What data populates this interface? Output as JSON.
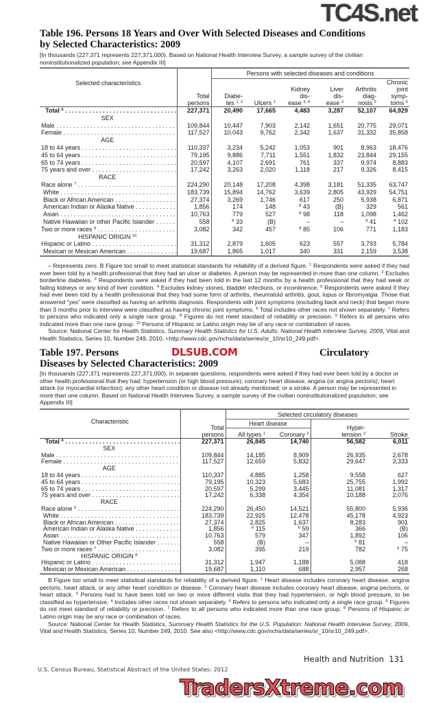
{
  "watermarks": {
    "top": "TC4S.net",
    "middle": "DLSUB.COM",
    "bottom": "TradersXtreme.com"
  },
  "table196": {
    "title_line1": "Table 196. Persons 18 Years and Over With Selected Diseases and Conditions",
    "title_line2": "by Selected Characteristics: 2009",
    "headnote": "[In thousands (227,371 represents 227,371,000). Based on National Health Interview Survey, a sample survey of the civilian noninstitutionalized population; see Appendix III]",
    "group_header": "Persons with selected diseases and conditions",
    "stub_header": "Selected characteristics",
    "columns": [
      {
        "label": "Total persons",
        "sup": ""
      },
      {
        "label": "Diabe- tes",
        "sup": "1, 2"
      },
      {
        "label": "Ulcers",
        "sup": "1"
      },
      {
        "label": "Kidney dis- ease",
        "sup": "3, 4"
      },
      {
        "label": "Liver dis- ease",
        "sup": "3"
      },
      {
        "label": "Arthritis diag- nosis",
        "sup": "5"
      },
      {
        "label": "Chronic joint symp- toms",
        "sup": "5"
      }
    ],
    "rows": [
      {
        "type": "total",
        "label": "Total",
        "sup": "6",
        "values": [
          "227,371",
          "20,490",
          "17,665",
          "4,483",
          "3,287",
          "52,107",
          "64,929"
        ]
      },
      {
        "type": "section",
        "label": "SEX"
      },
      {
        "label": "Male",
        "values": [
          "109,844",
          "10,447",
          "7,903",
          "2,142",
          "1,651",
          "20,775",
          "29,071"
        ]
      },
      {
        "label": "Female",
        "values": [
          "117,527",
          "10,043",
          "9,762",
          "2,342",
          "1,637",
          "31,332",
          "35,858"
        ]
      },
      {
        "type": "section",
        "label": "AGE"
      },
      {
        "label": "18 to 44 years",
        "values": [
          "110,337",
          "3,234",
          "5,242",
          "1,053",
          "901",
          "8,963",
          "18,476"
        ]
      },
      {
        "label": "45 to 64 years",
        "values": [
          "79,195",
          "9,886",
          "7,711",
          "1,551",
          "1,832",
          "23,844",
          "29,155"
        ]
      },
      {
        "label": "65 to 74 years",
        "values": [
          "20,597",
          "4,107",
          "2,691",
          "761",
          "337",
          "9,974",
          "8,883"
        ]
      },
      {
        "label": "75 years and over",
        "values": [
          "17,242",
          "3,263",
          "2,020",
          "1,118",
          "217",
          "9,326",
          "8,415"
        ]
      },
      {
        "type": "section",
        "label": "RACE"
      },
      {
        "label": "Race alone",
        "sup": "7",
        "values": [
          "224,290",
          "20,148",
          "17,208",
          "4,398",
          "3,181",
          "51,335",
          "63,747"
        ]
      },
      {
        "label": "White",
        "indent": 1,
        "values": [
          "183,739",
          "15,894",
          "14,762",
          "3,639",
          "2,805",
          "43,929",
          "54,751"
        ]
      },
      {
        "label": "Black or African American",
        "indent": 1,
        "values": [
          "27,374",
          "3,269",
          "1,746",
          "617",
          "250",
          "5,938",
          "6,871"
        ]
      },
      {
        "label": "American Indian or Alaska Native",
        "indent": 1,
        "values": [
          "1,856",
          "174",
          "148",
          [
            "8",
            "43"
          ],
          "(B)",
          "329",
          "561"
        ]
      },
      {
        "label": "Asian",
        "indent": 1,
        "values": [
          "10,763",
          "779",
          "527",
          [
            "8",
            "98"
          ],
          "118",
          "1,098",
          "1,462"
        ]
      },
      {
        "label": "Native Hawaiian or other Pacific Islander",
        "indent": 1,
        "values": [
          "558",
          [
            "8",
            "33"
          ],
          "(B)",
          "–",
          "–",
          [
            "8",
            "41"
          ],
          [
            "8",
            "102"
          ]
        ]
      },
      {
        "label": "Two or more races",
        "sup": "9",
        "values": [
          "3,082",
          "342",
          "457",
          [
            "8",
            "85"
          ],
          "106",
          "771",
          "1,183"
        ]
      },
      {
        "type": "section",
        "label": "HISPANIC ORIGIN",
        "sup": "10"
      },
      {
        "label": "Hispanic or Latino",
        "values": [
          "31,312",
          "2,879",
          "1,605",
          "623",
          "557",
          "3,793",
          "5,784"
        ]
      },
      {
        "label": "Mexican or Mexican American",
        "indent": 1,
        "values": [
          "19,687",
          "1,865",
          "1,017",
          "340",
          "331",
          "2,159",
          "3,538"
        ]
      }
    ],
    "notes": [
      [
        "– Represents zero. B Figure too small to meet statistical standards for reliability of a derived figure. ",
        {
          "sup": "1"
        },
        " Respondents were asked if they had ever been told by a health professional that they had an ulcer or diabetes. A person may be represented in more than one column. ",
        {
          "sup": "2"
        },
        " Excludes borderline diabetes. ",
        {
          "sup": "3"
        },
        " Respondents were asked if they had been told in the last 12 months by a health professional that they had weak or failing kidneys or any kind of liver condition. ",
        {
          "sup": "4"
        },
        " Excludes kidney stones, bladder infections, or incontinence. ",
        {
          "sup": "5"
        },
        " Respondents were asked if they had ever been told by a health professional that they had some form of arthritis, rheumatoid arthritis, gout, lupus or fibromyalgia. Those that answered “yes” were classified as having an arthritis diagnosis. Respondents with joint symptoms (excluding back and neck) that began more than 3 months prior to interview were classified as having chronic joint symptoms. ",
        {
          "sup": "6"
        },
        " Total includes other races not shown separately. ",
        {
          "sup": "7"
        },
        " Refers to persons who indicated only a single race group. ",
        {
          "sup": "8"
        },
        " Figures do not meet standard of reliability or precision. ",
        {
          "sup": "9"
        },
        " Refers to all persons who indicated more than one race group. ",
        {
          "sup": "10"
        },
        " Persons of Hispanic or Latino origin may be of any race or combination of races."
      ],
      [
        "Source: National Center for Health Statistics, ",
        {
          "i": "Summary Health Statistics for U.S. Adults: National Health Interview Survey, 2009"
        },
        ", Vital and Health Statistics, Series 10, Number 249, 2010, <http://www.cdc.gov/nchs/data/series/sr_10/sr10_249.pdf>."
      ]
    ]
  },
  "table197": {
    "title_line1_left": "Table 197. Persons",
    "title_line1_right": "Circulatory",
    "title_line2": "Diseases by Selected Characteristics: 2009",
    "headnote": "[In thousands (227,371 represents 227,371,000). In separate questions, respondents were asked if they had ever been told by a doctor or other health professional that they had: hypertension (or high blood pressure); coronary heart disease, angina (or angina pectoris); heart attack (or myocardial infarction); any other heart condition or disease not already mentioned; or a stroke. A person may be represented in more than one column. Based on National Health Interview Survey, a sample survey of the civilian noninstitutionalized population; see Appendix III]",
    "group_header": "Selected circulatory diseases",
    "subgroup_header": "Heart disease",
    "stub_header": "Characteristic",
    "columns": [
      {
        "label": "Total persons",
        "sup": ""
      },
      {
        "label": "All types",
        "sup": "1"
      },
      {
        "label": "Coronary",
        "sup": "2"
      },
      {
        "label": "Hyper- tension",
        "sup": "3"
      },
      {
        "label": "Stroke",
        "sup": ""
      }
    ],
    "rows": [
      {
        "type": "total",
        "label": "Total",
        "sup": "4",
        "values": [
          "227,371",
          "26,845",
          "14,740",
          "56,582",
          "6,011"
        ]
      },
      {
        "type": "section",
        "label": "SEX"
      },
      {
        "label": "Male",
        "values": [
          "109,844",
          "14,185",
          "8,909",
          "26,935",
          "2,678"
        ]
      },
      {
        "label": "Female",
        "values": [
          "117,527",
          "12,659",
          "5,832",
          "29,647",
          "3,333"
        ]
      },
      {
        "type": "section",
        "label": "AGE"
      },
      {
        "label": "18 to 44 years",
        "values": [
          "110,337",
          "4,885",
          "1,258",
          "9,558",
          "627"
        ]
      },
      {
        "label": "45 to 64 years",
        "values": [
          "79,195",
          "10,323",
          "5,683",
          "25,755",
          "1,992"
        ]
      },
      {
        "label": "65 to 74 years",
        "values": [
          "20,597",
          "5,299",
          "3,445",
          "11,081",
          "1,317"
        ]
      },
      {
        "label": "75 years and over",
        "values": [
          "17,242",
          "6,338",
          "4,354",
          "10,188",
          "2,076"
        ]
      },
      {
        "type": "section",
        "label": "RACE"
      },
      {
        "label": "Race alone",
        "sup": "5",
        "values": [
          "224,290",
          "26,450",
          "14,521",
          "55,800",
          "5,936"
        ]
      },
      {
        "label": "White",
        "indent": 1,
        "values": [
          "183,739",
          "22,925",
          "12,478",
          "45,178",
          "4,923"
        ]
      },
      {
        "label": "Black or African American",
        "indent": 1,
        "values": [
          "27,374",
          "2,825",
          "1,637",
          "8,283",
          "901"
        ]
      },
      {
        "label": "American Indian or Alaska Native",
        "indent": 1,
        "values": [
          "1,856",
          [
            "6",
            "115"
          ],
          [
            "6",
            "59"
          ],
          "366",
          "(B)"
        ]
      },
      {
        "label": "Asian",
        "indent": 1,
        "values": [
          "10,763",
          "579",
          "347",
          "1,892",
          "106"
        ]
      },
      {
        "label": "Native Hawaiian or Other Pacific Islander",
        "indent": 1,
        "values": [
          "558",
          "(B)",
          "–",
          [
            "6",
            "81"
          ],
          "–"
        ]
      },
      {
        "label": "Two or more races",
        "sup": "7",
        "values": [
          "3,082",
          "395",
          "219",
          "782",
          [
            "6",
            "75"
          ]
        ]
      },
      {
        "type": "section",
        "label": "HISPANIC ORIGIN",
        "sup": "8"
      },
      {
        "label": "Hispanic or Latino",
        "values": [
          "31,312",
          "1,947",
          "1,188",
          "5,088",
          "418"
        ]
      },
      {
        "label": "Mexican or Mexican American",
        "indent": 1,
        "values": [
          "19,687",
          "1,110",
          "688",
          "2,957",
          "268"
        ]
      }
    ],
    "notes": [
      [
        "B Figure too small to meet statistical standards for reliability of a derived figure. ",
        {
          "sup": "1"
        },
        " Heart disease includes coronary heart disease, angina pectoris, heart attack, or any other heart condition or disease. ",
        {
          "sup": "2"
        },
        " Coronary heart disease includes coronary heart disease, angina pectoris, or heart attack. ",
        {
          "sup": "3"
        },
        " Persons had to have been told on two or more different visits that they had hypertension, or high blood pressure, to be classified as hypertensive. ",
        {
          "sup": "4"
        },
        " Includes other races not shown separately. ",
        {
          "sup": "5"
        },
        " Refers to persons who indicated only a single race group. ",
        {
          "sup": "6"
        },
        " Figures do not meet standard of reliability or precision. ",
        {
          "sup": "7"
        },
        " Refers to all persons who indicated more than one race group. ",
        {
          "sup": "8"
        },
        " Persons of Hispanic or Latino origin may be any race or combination of races."
      ],
      [
        "Source: National Center for Health Statistics, ",
        {
          "i": "Summary Health Statistics for the U.S. Population: National Health Interview Survey"
        },
        ", 2009, Vital and Health Statistics, Series 10, Number 249, 2010. See also <http://www.cdc.gov/nchs/data/series/sr_10/sr10_249.pdf>."
      ]
    ]
  },
  "footer": {
    "section": "Health and Nutrition",
    "page_number": "131",
    "publication": "U.S. Census Bureau, Statistical Abstract of the United States: 2012"
  }
}
